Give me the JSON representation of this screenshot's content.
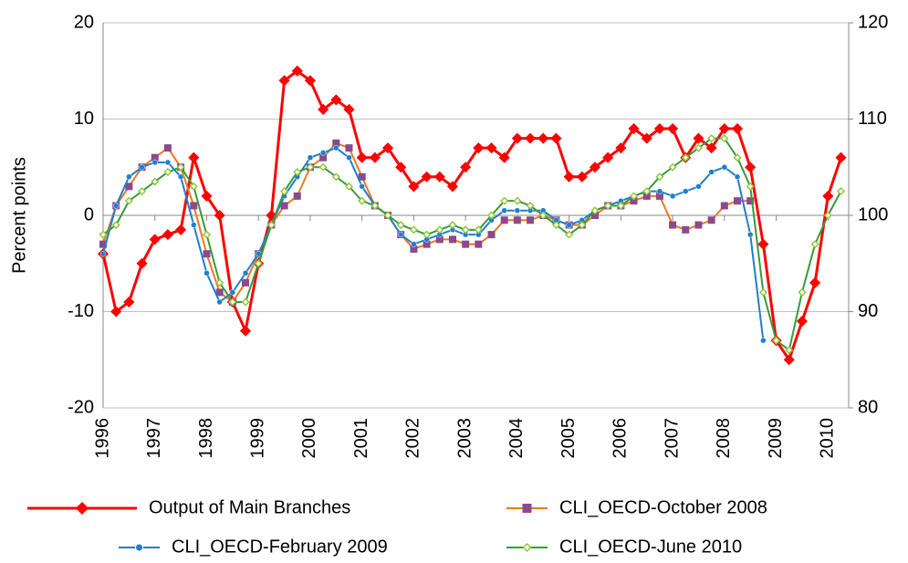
{
  "chart_data": {
    "type": "line",
    "y_label": "Percent points",
    "x": [
      1996,
      1996.25,
      1996.5,
      1996.75,
      1997,
      1997.25,
      1997.5,
      1997.75,
      1998,
      1998.25,
      1998.5,
      1998.75,
      1999,
      1999.25,
      1999.5,
      1999.75,
      2000,
      2000.25,
      2000.5,
      2000.75,
      2001,
      2001.25,
      2001.5,
      2001.75,
      2002,
      2002.25,
      2002.5,
      2002.75,
      2003,
      2003.25,
      2003.5,
      2003.75,
      2004,
      2004.25,
      2004.5,
      2004.75,
      2005,
      2005.25,
      2005.5,
      2005.75,
      2006,
      2006.25,
      2006.5,
      2006.75,
      2007,
      2007.25,
      2007.5,
      2007.75,
      2008,
      2008.25,
      2008.5,
      2008.75,
      2009,
      2009.25,
      2009.5,
      2009.75,
      2010,
      2010.25
    ],
    "xlim": [
      1996,
      2010.4
    ],
    "xticks": [
      1996,
      1997,
      1998,
      1999,
      2000,
      2001,
      2002,
      2003,
      2004,
      2005,
      2006,
      2007,
      2008,
      2009,
      2010
    ],
    "ylim": [
      -20,
      20
    ],
    "yticks": [
      -20,
      -10,
      0,
      10,
      20
    ],
    "y2lim": [
      80,
      120
    ],
    "y2ticks": [
      80,
      90,
      100,
      110,
      120
    ],
    "grid": true,
    "series": [
      {
        "name": "Output of Main Branches",
        "color": "#ff0000",
        "marker": "diamond",
        "values": [
          -4,
          -10,
          -9,
          -5,
          -2.5,
          -2,
          -1.5,
          6,
          2,
          0,
          -9,
          -12,
          -5,
          0,
          14,
          15,
          14,
          11,
          12,
          11,
          6,
          6,
          7,
          5,
          3,
          4,
          4,
          3,
          5,
          7,
          7,
          6,
          8,
          8,
          8,
          8,
          4,
          4,
          5,
          6,
          7,
          9,
          8,
          9,
          9,
          6,
          8,
          7,
          9,
          9,
          5,
          -3,
          -13,
          -15,
          -11,
          -7,
          2,
          6
        ]
      },
      {
        "name": "CLI_OECD-October 2008",
        "color": "#8b4a8b",
        "line_color": "#f07820",
        "marker": "square",
        "axis": "y2",
        "values": [
          97,
          101,
          103,
          105,
          106,
          107,
          105,
          101,
          96,
          92,
          91,
          93,
          96,
          99,
          101,
          102,
          105,
          106,
          107.5,
          107,
          104,
          101,
          100,
          98,
          96.5,
          97,
          97.5,
          97.5,
          97,
          97,
          98,
          99.5,
          99.5,
          99.5,
          100,
          99.5,
          99,
          99,
          100,
          101,
          101,
          101.5,
          102,
          102,
          99,
          98.5,
          99,
          99.5,
          101,
          101.5,
          101.5,
          null,
          null,
          null,
          null,
          null,
          null,
          null
        ]
      },
      {
        "name": "CLI_OECD-February 2009",
        "color": "#1f7fd0",
        "marker": "circle",
        "axis": "y2",
        "values": [
          96,
          101,
          104,
          105,
          105.5,
          105.5,
          104,
          99,
          94,
          91,
          92,
          94,
          96,
          99,
          102,
          104,
          106,
          106.5,
          107,
          106,
          103,
          101,
          100,
          98,
          97,
          97.5,
          98,
          98.5,
          98,
          98,
          99.5,
          100.5,
          100.5,
          100.5,
          100.5,
          99.5,
          99,
          99.5,
          100.5,
          101,
          101.5,
          102,
          102.5,
          102.5,
          102,
          102.5,
          103,
          104.5,
          105,
          104,
          98,
          87,
          null,
          null,
          null,
          null,
          null,
          null
        ]
      },
      {
        "name": "CLI_OECD-June 2010",
        "color": "#92c83e",
        "line_color": "#3a9a3a",
        "marker": "open-diamond",
        "axis": "y2",
        "values": [
          98,
          99,
          101.5,
          102.5,
          103.5,
          104.5,
          105,
          103,
          98,
          93,
          91,
          91,
          95,
          99,
          102.5,
          104.5,
          105,
          105,
          104,
          103,
          101.5,
          101,
          100,
          99,
          98.5,
          98,
          98.5,
          99,
          98.5,
          98.5,
          100,
          101.5,
          101.5,
          101,
          100,
          99,
          98,
          99,
          100.5,
          101,
          101,
          102,
          102.5,
          104,
          105,
          106,
          107,
          108,
          108,
          106,
          103,
          92,
          87,
          86,
          92,
          97,
          100,
          102.5
        ]
      }
    ]
  }
}
